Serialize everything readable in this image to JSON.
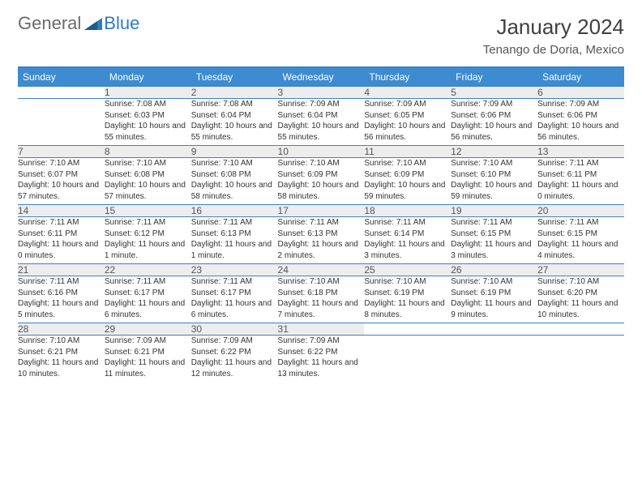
{
  "brand": {
    "word1": "General",
    "word2": "Blue",
    "word2_color": "#2f7bbf"
  },
  "header": {
    "title": "January 2024",
    "location": "Tenango de Doria, Mexico"
  },
  "colors": {
    "header_bg": "#3d8bd0",
    "header_text": "#ffffff",
    "rule": "#3d82c4",
    "daynum_bg": "#ededed",
    "text": "#333333"
  },
  "day_headers": [
    "Sunday",
    "Monday",
    "Tuesday",
    "Wednesday",
    "Thursday",
    "Friday",
    "Saturday"
  ],
  "weeks": [
    {
      "nums": [
        "",
        "1",
        "2",
        "3",
        "4",
        "5",
        "6"
      ],
      "cells": [
        null,
        {
          "sunrise": "Sunrise: 7:08 AM",
          "sunset": "Sunset: 6:03 PM",
          "daylight": "Daylight: 10 hours and 55 minutes."
        },
        {
          "sunrise": "Sunrise: 7:08 AM",
          "sunset": "Sunset: 6:04 PM",
          "daylight": "Daylight: 10 hours and 55 minutes."
        },
        {
          "sunrise": "Sunrise: 7:09 AM",
          "sunset": "Sunset: 6:04 PM",
          "daylight": "Daylight: 10 hours and 55 minutes."
        },
        {
          "sunrise": "Sunrise: 7:09 AM",
          "sunset": "Sunset: 6:05 PM",
          "daylight": "Daylight: 10 hours and 56 minutes."
        },
        {
          "sunrise": "Sunrise: 7:09 AM",
          "sunset": "Sunset: 6:06 PM",
          "daylight": "Daylight: 10 hours and 56 minutes."
        },
        {
          "sunrise": "Sunrise: 7:09 AM",
          "sunset": "Sunset: 6:06 PM",
          "daylight": "Daylight: 10 hours and 56 minutes."
        }
      ]
    },
    {
      "nums": [
        "7",
        "8",
        "9",
        "10",
        "11",
        "12",
        "13"
      ],
      "cells": [
        {
          "sunrise": "Sunrise: 7:10 AM",
          "sunset": "Sunset: 6:07 PM",
          "daylight": "Daylight: 10 hours and 57 minutes."
        },
        {
          "sunrise": "Sunrise: 7:10 AM",
          "sunset": "Sunset: 6:08 PM",
          "daylight": "Daylight: 10 hours and 57 minutes."
        },
        {
          "sunrise": "Sunrise: 7:10 AM",
          "sunset": "Sunset: 6:08 PM",
          "daylight": "Daylight: 10 hours and 58 minutes."
        },
        {
          "sunrise": "Sunrise: 7:10 AM",
          "sunset": "Sunset: 6:09 PM",
          "daylight": "Daylight: 10 hours and 58 minutes."
        },
        {
          "sunrise": "Sunrise: 7:10 AM",
          "sunset": "Sunset: 6:09 PM",
          "daylight": "Daylight: 10 hours and 59 minutes."
        },
        {
          "sunrise": "Sunrise: 7:10 AM",
          "sunset": "Sunset: 6:10 PM",
          "daylight": "Daylight: 10 hours and 59 minutes."
        },
        {
          "sunrise": "Sunrise: 7:11 AM",
          "sunset": "Sunset: 6:11 PM",
          "daylight": "Daylight: 11 hours and 0 minutes."
        }
      ]
    },
    {
      "nums": [
        "14",
        "15",
        "16",
        "17",
        "18",
        "19",
        "20"
      ],
      "cells": [
        {
          "sunrise": "Sunrise: 7:11 AM",
          "sunset": "Sunset: 6:11 PM",
          "daylight": "Daylight: 11 hours and 0 minutes."
        },
        {
          "sunrise": "Sunrise: 7:11 AM",
          "sunset": "Sunset: 6:12 PM",
          "daylight": "Daylight: 11 hours and 1 minute."
        },
        {
          "sunrise": "Sunrise: 7:11 AM",
          "sunset": "Sunset: 6:13 PM",
          "daylight": "Daylight: 11 hours and 1 minute."
        },
        {
          "sunrise": "Sunrise: 7:11 AM",
          "sunset": "Sunset: 6:13 PM",
          "daylight": "Daylight: 11 hours and 2 minutes."
        },
        {
          "sunrise": "Sunrise: 7:11 AM",
          "sunset": "Sunset: 6:14 PM",
          "daylight": "Daylight: 11 hours and 3 minutes."
        },
        {
          "sunrise": "Sunrise: 7:11 AM",
          "sunset": "Sunset: 6:15 PM",
          "daylight": "Daylight: 11 hours and 3 minutes."
        },
        {
          "sunrise": "Sunrise: 7:11 AM",
          "sunset": "Sunset: 6:15 PM",
          "daylight": "Daylight: 11 hours and 4 minutes."
        }
      ]
    },
    {
      "nums": [
        "21",
        "22",
        "23",
        "24",
        "25",
        "26",
        "27"
      ],
      "cells": [
        {
          "sunrise": "Sunrise: 7:11 AM",
          "sunset": "Sunset: 6:16 PM",
          "daylight": "Daylight: 11 hours and 5 minutes."
        },
        {
          "sunrise": "Sunrise: 7:11 AM",
          "sunset": "Sunset: 6:17 PM",
          "daylight": "Daylight: 11 hours and 6 minutes."
        },
        {
          "sunrise": "Sunrise: 7:11 AM",
          "sunset": "Sunset: 6:17 PM",
          "daylight": "Daylight: 11 hours and 6 minutes."
        },
        {
          "sunrise": "Sunrise: 7:10 AM",
          "sunset": "Sunset: 6:18 PM",
          "daylight": "Daylight: 11 hours and 7 minutes."
        },
        {
          "sunrise": "Sunrise: 7:10 AM",
          "sunset": "Sunset: 6:19 PM",
          "daylight": "Daylight: 11 hours and 8 minutes."
        },
        {
          "sunrise": "Sunrise: 7:10 AM",
          "sunset": "Sunset: 6:19 PM",
          "daylight": "Daylight: 11 hours and 9 minutes."
        },
        {
          "sunrise": "Sunrise: 7:10 AM",
          "sunset": "Sunset: 6:20 PM",
          "daylight": "Daylight: 11 hours and 10 minutes."
        }
      ]
    },
    {
      "nums": [
        "28",
        "29",
        "30",
        "31",
        "",
        "",
        ""
      ],
      "cells": [
        {
          "sunrise": "Sunrise: 7:10 AM",
          "sunset": "Sunset: 6:21 PM",
          "daylight": "Daylight: 11 hours and 10 minutes."
        },
        {
          "sunrise": "Sunrise: 7:09 AM",
          "sunset": "Sunset: 6:21 PM",
          "daylight": "Daylight: 11 hours and 11 minutes."
        },
        {
          "sunrise": "Sunrise: 7:09 AM",
          "sunset": "Sunset: 6:22 PM",
          "daylight": "Daylight: 11 hours and 12 minutes."
        },
        {
          "sunrise": "Sunrise: 7:09 AM",
          "sunset": "Sunset: 6:22 PM",
          "daylight": "Daylight: 11 hours and 13 minutes."
        },
        null,
        null,
        null
      ]
    }
  ]
}
